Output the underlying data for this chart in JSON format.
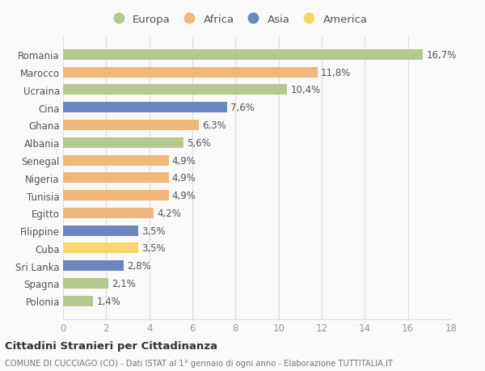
{
  "countries": [
    "Romania",
    "Marocco",
    "Ucraina",
    "Cina",
    "Ghana",
    "Albania",
    "Senegal",
    "Nigeria",
    "Tunisia",
    "Egitto",
    "Filippine",
    "Cuba",
    "Sri Lanka",
    "Spagna",
    "Polonia"
  ],
  "values": [
    16.7,
    11.8,
    10.4,
    7.6,
    6.3,
    5.6,
    4.9,
    4.9,
    4.9,
    4.2,
    3.5,
    3.5,
    2.8,
    2.1,
    1.4
  ],
  "labels": [
    "16,7%",
    "11,8%",
    "10,4%",
    "7,6%",
    "6,3%",
    "5,6%",
    "4,9%",
    "4,9%",
    "4,9%",
    "4,2%",
    "3,5%",
    "3,5%",
    "2,8%",
    "2,1%",
    "1,4%"
  ],
  "continent": [
    "Europa",
    "Africa",
    "Europa",
    "Asia",
    "Africa",
    "Europa",
    "Africa",
    "Africa",
    "Africa",
    "Africa",
    "Asia",
    "America",
    "Asia",
    "Europa",
    "Europa"
  ],
  "continent_colors": {
    "Europa": "#b5c98e",
    "Africa": "#f0b87a",
    "Asia": "#6b87c0",
    "America": "#f5d76a"
  },
  "legend_order": [
    "Europa",
    "Africa",
    "Asia",
    "America"
  ],
  "xlim": [
    0,
    18
  ],
  "xticks": [
    0,
    2,
    4,
    6,
    8,
    10,
    12,
    14,
    16,
    18
  ],
  "title": "Cittadini Stranieri per Cittadinanza",
  "subtitle": "COMUNE DI CUCCIAGO (CO) - Dati ISTAT al 1° gennaio di ogni anno - Elaborazione TUTTITALIA.IT",
  "bg_color": "#f9f9f9",
  "grid_color": "#dddddd",
  "label_fontsize": 8.5,
  "bar_height": 0.6
}
